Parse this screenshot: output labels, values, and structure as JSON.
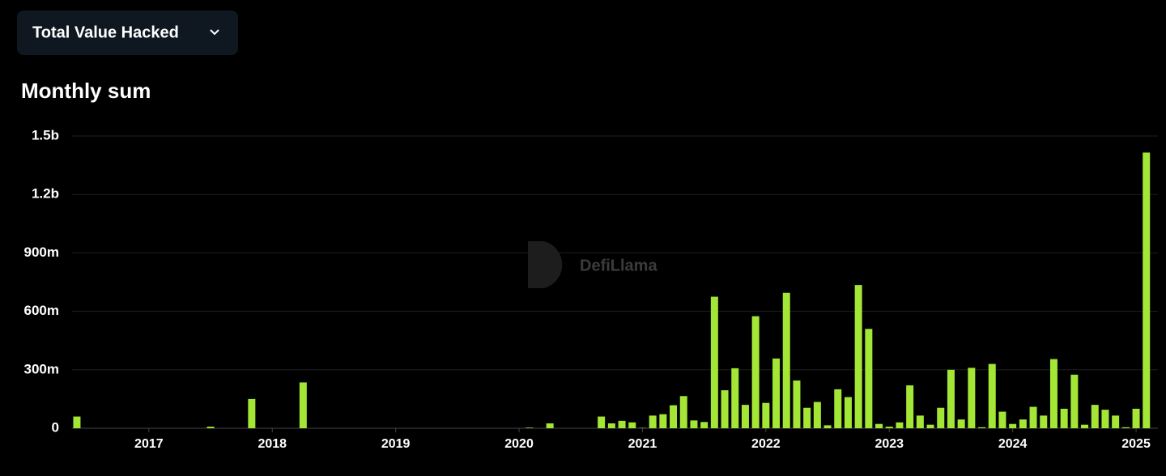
{
  "ui": {
    "dropdown_label": "Total Value Hacked",
    "watermark": "DefiLlama"
  },
  "chart_data": {
    "type": "bar",
    "title": "Monthly sum",
    "color": "#a3e635",
    "grid": true,
    "categories": [
      null,
      null,
      null,
      null,
      null,
      null,
      null,
      "2017",
      null,
      null,
      null,
      null,
      null,
      null,
      null,
      null,
      null,
      null,
      null,
      "2018",
      null,
      null,
      null,
      null,
      null,
      null,
      null,
      null,
      null,
      null,
      null,
      "2019",
      null,
      null,
      null,
      null,
      null,
      null,
      null,
      null,
      null,
      null,
      null,
      "2020",
      null,
      null,
      null,
      null,
      null,
      null,
      null,
      null,
      null,
      null,
      null,
      "2021",
      null,
      null,
      null,
      null,
      null,
      null,
      null,
      null,
      null,
      null,
      null,
      "2022",
      null,
      null,
      null,
      null,
      null,
      null,
      null,
      null,
      null,
      null,
      null,
      "2023",
      null,
      null,
      null,
      null,
      null,
      null,
      null,
      null,
      null,
      null,
      null,
      "2024",
      null,
      null,
      null,
      null,
      null,
      null,
      null,
      null,
      null,
      null,
      null,
      "2025",
      null
    ],
    "values": [
      60,
      0,
      0,
      0,
      0,
      0,
      0,
      0,
      0,
      0,
      0,
      0,
      0,
      8,
      0,
      0,
      0,
      150,
      0,
      0,
      0,
      0,
      235,
      0,
      0,
      0,
      0,
      0,
      0,
      0,
      0,
      0,
      0,
      0,
      0,
      0,
      0,
      0,
      0,
      0,
      0,
      0,
      0,
      0,
      3,
      0,
      25,
      0,
      0,
      0,
      0,
      60,
      25,
      38,
      30,
      2,
      65,
      72,
      118,
      165,
      40,
      32,
      675,
      195,
      308,
      120,
      575,
      130,
      358,
      695,
      245,
      105,
      135,
      15,
      200,
      160,
      735,
      510,
      22,
      8,
      30,
      220,
      65,
      18,
      105,
      300,
      45,
      310,
      5,
      330,
      85,
      22,
      45,
      110,
      65,
      355,
      100,
      275,
      18,
      120,
      95,
      65,
      5,
      100,
      1415
    ],
    "ylim": [
      0,
      1500
    ],
    "yticks": [
      0,
      {
        "value": 300,
        "label": "300m"
      },
      {
        "value": 600,
        "label": "600m"
      },
      {
        "value": 900,
        "label": "900m"
      },
      {
        "value": 1200,
        "label": "1.2b"
      },
      {
        "value": 1500,
        "label": "1.5b"
      }
    ]
  }
}
